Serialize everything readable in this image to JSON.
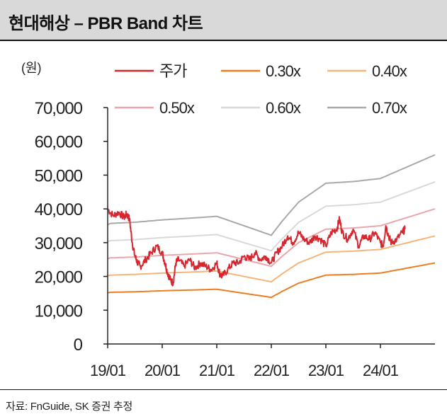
{
  "header": {
    "title": "현대해상 – PBR Band 차트"
  },
  "source": "자료: FnGuide, SK 증권 추정",
  "colors": {
    "price": "#d7262e",
    "pbr030": "#ee7d22",
    "pbr040": "#f5b57a",
    "pbr050": "#eba6ab",
    "pbr060": "#d9d9d9",
    "pbr070": "#a9a9a9",
    "axis": "#222222"
  },
  "chart_data": {
    "type": "line",
    "title": "현대해상 – PBR Band 차트",
    "unit_label": "(원)",
    "xlabel": "",
    "ylabel": "(원)",
    "ylim": [
      0,
      70000
    ],
    "xlim": [
      2019.0,
      2025.0
    ],
    "y_ticks": [
      0,
      10000,
      20000,
      30000,
      40000,
      50000,
      60000,
      70000
    ],
    "y_tick_labels": [
      "0",
      "10,000",
      "20,000",
      "30,000",
      "40,000",
      "50,000",
      "60,000",
      "70,000"
    ],
    "x_ticks": [
      2019.0,
      2020.0,
      2021.0,
      2022.0,
      2023.0,
      2024.0
    ],
    "x_tick_labels": [
      "19/01",
      "20/01",
      "21/01",
      "22/01",
      "23/01",
      "24/01"
    ],
    "grid": false,
    "legend": [
      "주가",
      "0.30x",
      "0.40x",
      "0.50x",
      "0.60x",
      "0.70x"
    ],
    "band_base": {
      "description": "PBR 1.0x band value (won); each band = multiple × base",
      "x": [
        2019.0,
        2019.05,
        2019.5,
        2020.0,
        2020.5,
        2021.0,
        2021.5,
        2022.0,
        2022.2,
        2022.5,
        2023.0,
        2023.5,
        2024.0,
        2024.5,
        2025.0
      ],
      "y": [
        50500,
        51000,
        51500,
        52500,
        53200,
        54000,
        50000,
        46000,
        52000,
        60000,
        68000,
        68700,
        70000,
        75000,
        80000
      ]
    },
    "series": [
      {
        "name": "주가",
        "x": [
          2019.0,
          2019.1,
          2019.2,
          2019.3,
          2019.35,
          2019.4,
          2019.45,
          2019.5,
          2019.55,
          2019.6,
          2019.7,
          2019.8,
          2019.9,
          2020.0,
          2020.05,
          2020.1,
          2020.15,
          2020.2,
          2020.25,
          2020.3,
          2020.4,
          2020.5,
          2020.6,
          2020.7,
          2020.8,
          2020.9,
          2021.0,
          2021.05,
          2021.1,
          2021.2,
          2021.3,
          2021.4,
          2021.5,
          2021.6,
          2021.7,
          2021.8,
          2021.9,
          2022.0,
          2022.1,
          2022.2,
          2022.3,
          2022.4,
          2022.5,
          2022.6,
          2022.7,
          2022.8,
          2022.9,
          2023.0,
          2023.1,
          2023.2,
          2023.25,
          2023.3,
          2023.4,
          2023.5,
          2023.6,
          2023.7,
          2023.8,
          2023.9,
          2024.0,
          2024.05,
          2024.1,
          2024.15,
          2024.2,
          2024.3,
          2024.4,
          2024.45
        ],
        "y": [
          40000,
          38000,
          39000,
          37500,
          38500,
          37000,
          30000,
          26000,
          24000,
          23000,
          25000,
          27000,
          29000,
          27000,
          24000,
          21000,
          19000,
          18000,
          24000,
          25000,
          23000,
          25000,
          22500,
          24000,
          23000,
          22000,
          24000,
          21000,
          20000,
          22000,
          24000,
          24000,
          26000,
          25000,
          27000,
          25000,
          26000,
          24000,
          27000,
          29000,
          32000,
          30000,
          33000,
          31000,
          30000,
          32000,
          31000,
          29000,
          33000,
          34000,
          37000,
          33000,
          31000,
          34000,
          29000,
          32000,
          31000,
          33000,
          30000,
          29000,
          35000,
          32000,
          30000,
          31000,
          33000,
          34000
        ]
      },
      {
        "name": "0.30x",
        "multiple": 0.3
      },
      {
        "name": "0.40x",
        "multiple": 0.4
      },
      {
        "name": "0.50x",
        "multiple": 0.5
      },
      {
        "name": "0.60x",
        "multiple": 0.6
      },
      {
        "name": "0.70x",
        "multiple": 0.7
      }
    ]
  }
}
